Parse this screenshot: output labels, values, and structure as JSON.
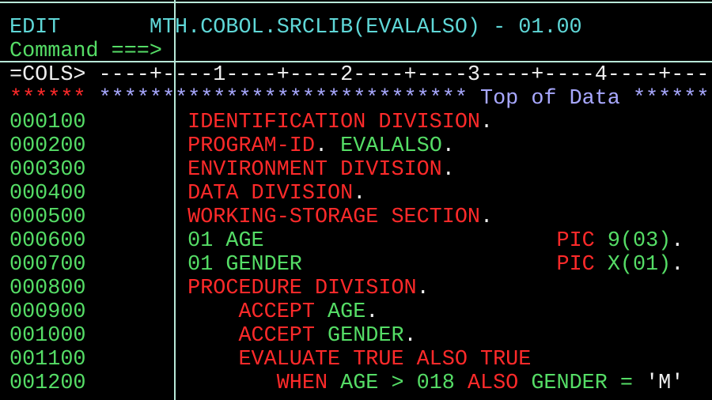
{
  "colors": {
    "cyan": "#5fd7d7",
    "green": "#55dd66",
    "red": "#ff2a2a",
    "white": "#f0f0f0",
    "blue": "#a8a8ff"
  },
  "lines": [
    {
      "name": "title-line",
      "segs": [
        {
          "t": "EDIT",
          "c": "cyan"
        },
        {
          "t": "       MTH.COBOL.SRCLIB(EVALALSO) - 01.00",
          "c": "cyan"
        }
      ]
    },
    {
      "name": "command-line",
      "segs": [
        {
          "t": "Command ===>",
          "c": "green"
        }
      ]
    },
    {
      "name": "cols-ruler",
      "segs": [
        {
          "t": "=COLS> ----+----1----+----2----+----3----+----4----+---",
          "c": "white"
        }
      ]
    },
    {
      "name": "top-of-data",
      "segs": [
        {
          "t": "******",
          "c": "red"
        },
        {
          "t": " ***************************** Top of Data ******",
          "c": "blue"
        }
      ]
    },
    {
      "name": "code-line",
      "segs": [
        {
          "t": "000100",
          "c": "green"
        },
        {
          "t": "        IDENTIFICATION DIVISION",
          "c": "red"
        },
        {
          "t": ".",
          "c": "white"
        }
      ]
    },
    {
      "name": "code-line",
      "segs": [
        {
          "t": "000200",
          "c": "green"
        },
        {
          "t": "        PROGRAM-ID",
          "c": "red"
        },
        {
          "t": ".",
          "c": "white"
        },
        {
          "t": " EVALALSO",
          "c": "green"
        },
        {
          "t": ".",
          "c": "white"
        }
      ]
    },
    {
      "name": "code-line",
      "segs": [
        {
          "t": "000300",
          "c": "green"
        },
        {
          "t": "        ENVIRONMENT DIVISION",
          "c": "red"
        },
        {
          "t": ".",
          "c": "white"
        }
      ]
    },
    {
      "name": "code-line",
      "segs": [
        {
          "t": "000400",
          "c": "green"
        },
        {
          "t": "        DATA DIVISION",
          "c": "red"
        },
        {
          "t": ".",
          "c": "white"
        }
      ]
    },
    {
      "name": "code-line",
      "segs": [
        {
          "t": "000500",
          "c": "green"
        },
        {
          "t": "        WORKING-STORAGE SECTION",
          "c": "red"
        },
        {
          "t": ".",
          "c": "white"
        }
      ]
    },
    {
      "name": "code-line",
      "segs": [
        {
          "t": "000600",
          "c": "green"
        },
        {
          "t": "        01 AGE",
          "c": "green"
        },
        {
          "t": "                       PIC",
          "c": "red"
        },
        {
          "t": " 9(03)",
          "c": "green"
        },
        {
          "t": ".",
          "c": "white"
        }
      ]
    },
    {
      "name": "code-line",
      "segs": [
        {
          "t": "000700",
          "c": "green"
        },
        {
          "t": "        01 GENDER",
          "c": "green"
        },
        {
          "t": "                    PIC",
          "c": "red"
        },
        {
          "t": " X(01)",
          "c": "green"
        },
        {
          "t": ".",
          "c": "white"
        }
      ]
    },
    {
      "name": "code-line",
      "segs": [
        {
          "t": "000800",
          "c": "green"
        },
        {
          "t": "        PROCEDURE DIVISION",
          "c": "red"
        },
        {
          "t": ".",
          "c": "white"
        }
      ]
    },
    {
      "name": "code-line",
      "segs": [
        {
          "t": "000900",
          "c": "green"
        },
        {
          "t": "            ACCEPT",
          "c": "red"
        },
        {
          "t": " AGE",
          "c": "green"
        },
        {
          "t": ".",
          "c": "white"
        }
      ]
    },
    {
      "name": "code-line",
      "segs": [
        {
          "t": "001000",
          "c": "green"
        },
        {
          "t": "            ACCEPT",
          "c": "red"
        },
        {
          "t": " GENDER",
          "c": "green"
        },
        {
          "t": ".",
          "c": "white"
        }
      ]
    },
    {
      "name": "code-line",
      "segs": [
        {
          "t": "001100",
          "c": "green"
        },
        {
          "t": "            EVALUATE TRUE ALSO TRUE",
          "c": "red"
        }
      ]
    },
    {
      "name": "code-line",
      "segs": [
        {
          "t": "001200",
          "c": "green"
        },
        {
          "t": "               WHEN",
          "c": "red"
        },
        {
          "t": " AGE > 018",
          "c": "green"
        },
        {
          "t": " ALSO",
          "c": "red"
        },
        {
          "t": " GENDER =",
          "c": "green"
        },
        {
          "t": " 'M'",
          "c": "white"
        }
      ]
    }
  ]
}
